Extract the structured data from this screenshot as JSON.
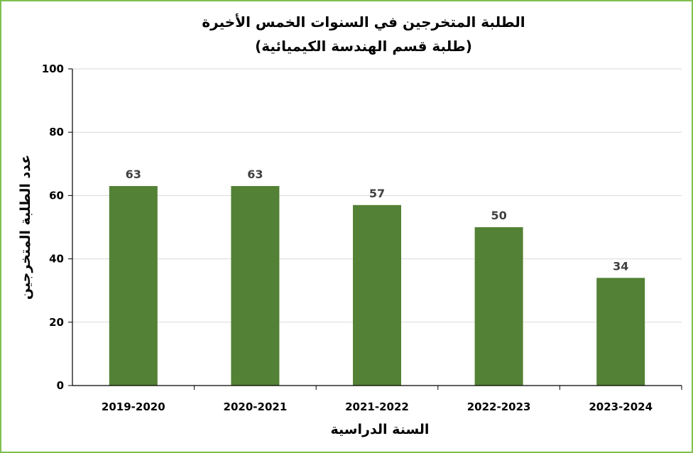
{
  "chart_data": {
    "type": "bar",
    "title": "الطلبة المتخرجين في السنوات الخمس الأخيرة",
    "subtitle": "(طلبة قسم الهندسة الكيميائية)",
    "xlabel": "السنة الدراسية",
    "ylabel": "عدد الطلبة المتخرجين",
    "categories": [
      "2019-2020",
      "2020-2021",
      "2021-2022",
      "2022-2023",
      "2023-2024"
    ],
    "values": [
      63,
      63,
      57,
      50,
      34
    ],
    "data_labels": [
      "63",
      "63",
      "57",
      "50",
      "34"
    ],
    "ylim": [
      0,
      100
    ],
    "yticks": [
      0,
      20,
      40,
      60,
      80,
      100
    ],
    "grid": true,
    "legend": "none",
    "colors": {
      "bar": "#538135",
      "grid": "#d9d9d9",
      "axis": "#000000",
      "border": "#7fbf4f",
      "data_label": "#404040"
    }
  }
}
